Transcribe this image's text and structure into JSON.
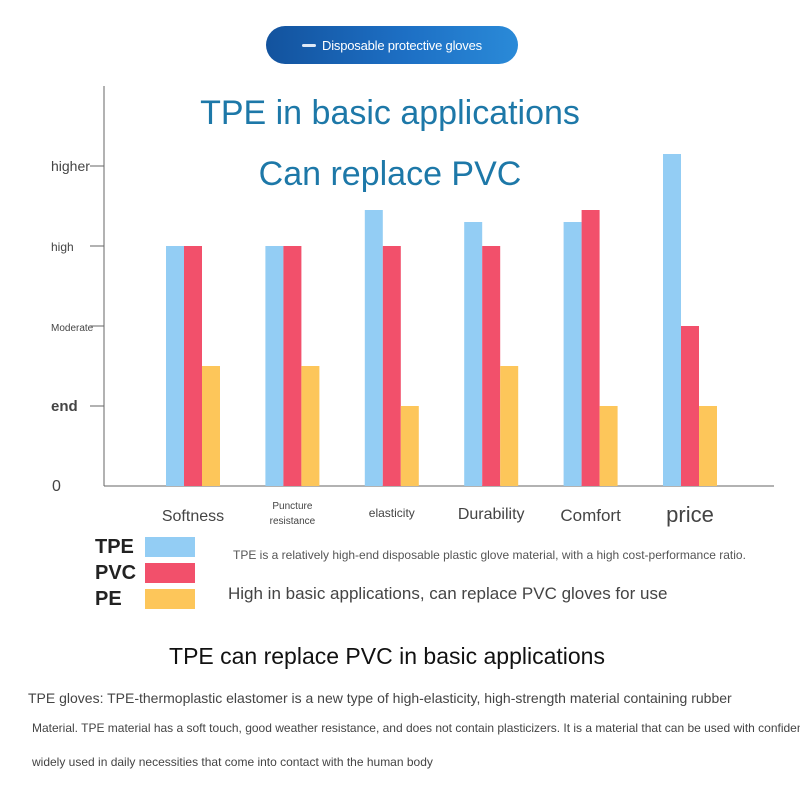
{
  "banner": {
    "label": "Disposable protective gloves"
  },
  "headline": {
    "line1": "TPE in basic applications",
    "line2": "Can replace PVC"
  },
  "chart_data": {
    "type": "bar",
    "title": "",
    "y_levels": [
      {
        "label": "0",
        "value": 0
      },
      {
        "label": "end",
        "value": 1
      },
      {
        "label": "Moderate",
        "value": 2
      },
      {
        "label": "high",
        "value": 3
      },
      {
        "label": "higher",
        "value": 4
      }
    ],
    "ylim": [
      0,
      5
    ],
    "categories": [
      {
        "label": "Softness"
      },
      {
        "label": "Puncture resistance",
        "lines": [
          "Puncture",
          "resistance"
        ]
      },
      {
        "label": "elasticity"
      },
      {
        "label": "Durability"
      },
      {
        "label": "Comfort"
      },
      {
        "label": "price"
      }
    ],
    "series": [
      {
        "name": "TPE",
        "color": "#93cdf4",
        "values": [
          3.0,
          3.0,
          3.45,
          3.3,
          3.3,
          4.15
        ]
      },
      {
        "name": "PVC",
        "color": "#f2506b",
        "values": [
          3.0,
          3.0,
          3.0,
          3.0,
          3.45,
          2.0
        ]
      },
      {
        "name": "PE",
        "color": "#fdc65a",
        "values": [
          1.5,
          1.5,
          1.0,
          1.5,
          1.0,
          1.0
        ]
      }
    ]
  },
  "notes": {
    "line1": "TPE is a relatively high-end disposable plastic glove material, with a high cost-performance ratio.",
    "line2": "High in basic applications, can replace PVC gloves for use"
  },
  "section": {
    "title": "TPE can replace PVC in basic applications",
    "line1": "TPE gloves: TPE-thermoplastic elastomer is a new type of high-elasticity, high-strength material containing rubber",
    "line2": "Material. TPE material has a soft touch, good weather resistance, and does not contain plasticizers. It is a material that can be used with confidence.",
    "line3": "widely used in daily necessities that come into contact with the human body"
  }
}
